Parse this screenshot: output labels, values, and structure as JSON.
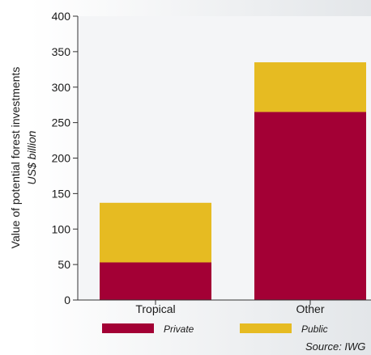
{
  "chart_data": {
    "type": "bar",
    "stacked": true,
    "categories": [
      "Tropical",
      "Other"
    ],
    "series": [
      {
        "name": "Private",
        "values": [
          53,
          265
        ],
        "color": "#a30035"
      },
      {
        "name": "Public",
        "values": [
          84,
          70
        ],
        "color": "#e6bb22"
      }
    ],
    "ylabel": "Value of potential forest investments",
    "ylabel_sub": "US$ billion",
    "ylim": [
      0,
      400
    ],
    "yticks": [
      0,
      50,
      100,
      150,
      200,
      250,
      300,
      350,
      400
    ],
    "yticks_labels": [
      "0",
      "50",
      "100",
      "150",
      "200",
      "250",
      "300",
      "350",
      "400"
    ],
    "grid": false,
    "legend_placement": "bottom",
    "source": "Source: IWG"
  }
}
